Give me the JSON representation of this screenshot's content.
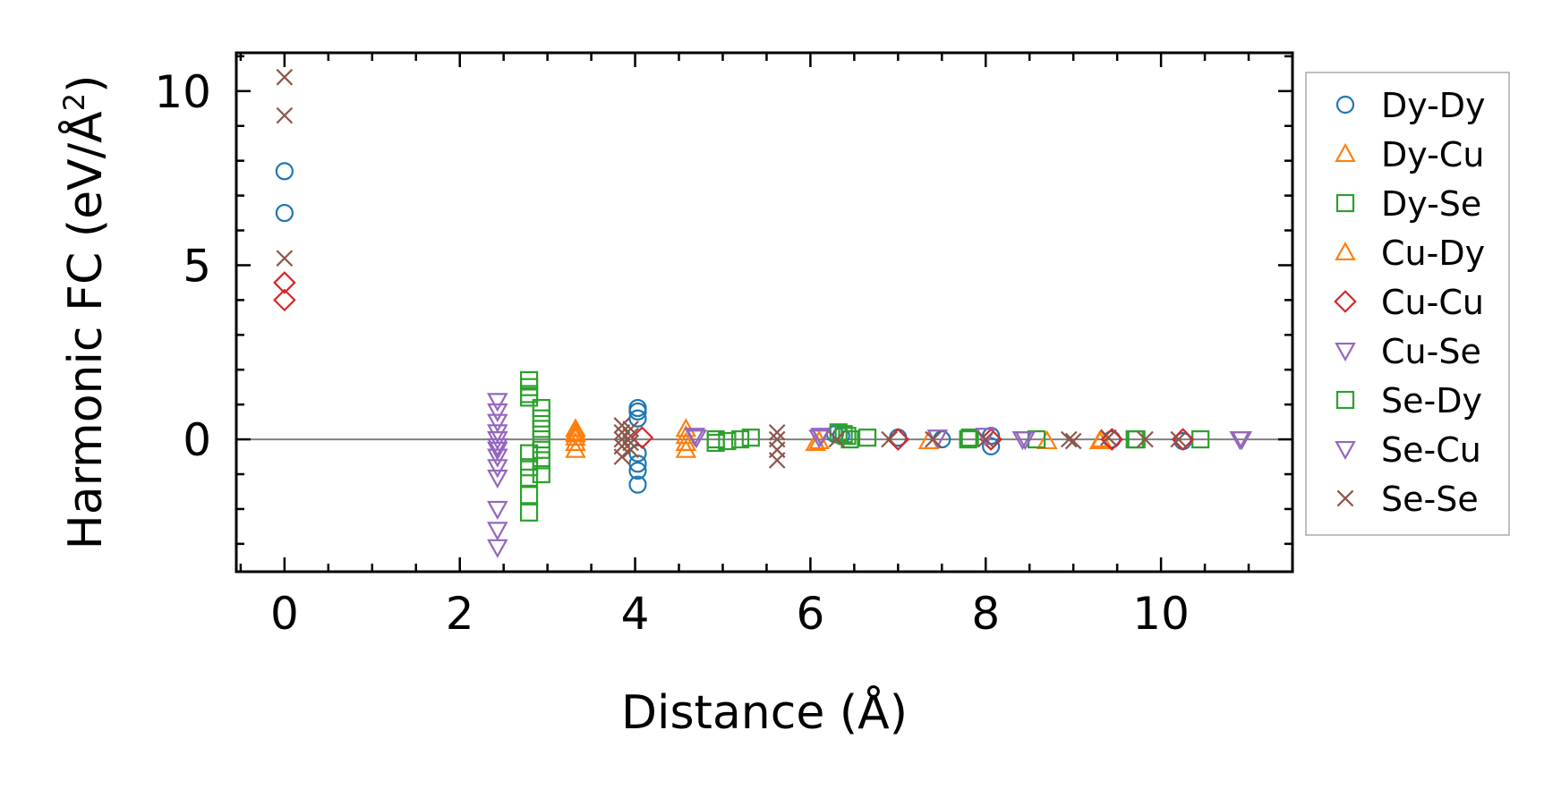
{
  "chart_data": {
    "type": "scatter",
    "title": "",
    "xlabel": "Distance (Å)",
    "ylabel_main": "Harmonic FC (eV/Å",
    "ylabel_sup": "2",
    "ylabel_close": ")",
    "xlim": [
      -0.55,
      11.5
    ],
    "ylim": [
      -3.8,
      11.1
    ],
    "x_ticks": [
      0,
      2,
      4,
      6,
      8,
      10
    ],
    "x_tick_labels": [
      "0",
      "2",
      "4",
      "6",
      "8",
      "10"
    ],
    "y_ticks": [
      0,
      5,
      10
    ],
    "y_tick_labels": [
      "0",
      "5",
      "10"
    ],
    "legend_position": "outside-right",
    "series": [
      {
        "name": "Dy-Dy",
        "marker": "circle",
        "color": "#1f77b4",
        "points": [
          [
            0,
            7.7
          ],
          [
            0,
            6.5
          ],
          [
            4.03,
            0.9
          ],
          [
            4.03,
            0.8
          ],
          [
            4.03,
            0.6
          ],
          [
            4.03,
            -0.4
          ],
          [
            4.03,
            -0.7
          ],
          [
            4.03,
            -0.9
          ],
          [
            4.03,
            -1.3
          ],
          [
            6.28,
            0.15
          ],
          [
            6.35,
            0.1
          ],
          [
            7.0,
            0.05
          ],
          [
            7.5,
            0.0
          ],
          [
            8.06,
            -0.2
          ],
          [
            8.06,
            0.1
          ],
          [
            9.44,
            0.0
          ],
          [
            10.25,
            -0.05
          ]
        ]
      },
      {
        "name": "Dy-Cu",
        "marker": "triangle-up",
        "color": "#ff7f0e",
        "points": [
          [
            3.32,
            0.3
          ],
          [
            3.32,
            0.15
          ],
          [
            3.32,
            -0.1
          ],
          [
            3.32,
            -0.3
          ],
          [
            4.58,
            0.3
          ],
          [
            4.58,
            -0.1
          ],
          [
            4.58,
            -0.3
          ],
          [
            6.06,
            -0.1
          ],
          [
            7.35,
            -0.05
          ],
          [
            8.7,
            -0.05
          ],
          [
            9.3,
            -0.05
          ]
        ]
      },
      {
        "name": "Dy-Se",
        "marker": "square",
        "color": "#2ca02c",
        "points": [
          [
            2.79,
            1.7
          ],
          [
            2.79,
            1.5
          ],
          [
            2.79,
            1.2
          ],
          [
            2.79,
            -0.4
          ],
          [
            2.79,
            -0.8
          ],
          [
            2.79,
            -1.1
          ],
          [
            2.79,
            -1.6
          ],
          [
            2.79,
            -2.1
          ],
          [
            2.93,
            0.9
          ],
          [
            2.93,
            0.6
          ],
          [
            2.93,
            0.3
          ],
          [
            2.93,
            -0.3
          ],
          [
            2.93,
            -0.6
          ],
          [
            2.93,
            -1.0
          ],
          [
            4.92,
            -0.1
          ],
          [
            5.05,
            -0.05
          ],
          [
            5.2,
            0.0
          ],
          [
            5.32,
            0.05
          ],
          [
            6.32,
            0.2
          ],
          [
            6.38,
            0.15
          ],
          [
            6.45,
            0.0
          ],
          [
            6.65,
            0.05
          ],
          [
            7.8,
            0.0
          ],
          [
            8.58,
            0.0
          ],
          [
            9.7,
            0.0
          ],
          [
            10.45,
            0.0
          ]
        ]
      },
      {
        "name": "Cu-Dy",
        "marker": "triangle-up",
        "color": "#ff7f0e",
        "points": [
          [
            3.32,
            0.2
          ],
          [
            3.32,
            0.05
          ],
          [
            4.58,
            0.1
          ],
          [
            6.1,
            -0.05
          ],
          [
            9.32,
            0.0
          ]
        ]
      },
      {
        "name": "Cu-Cu",
        "marker": "diamond",
        "color": "#d62728",
        "points": [
          [
            0,
            4.5
          ],
          [
            0,
            4.0
          ],
          [
            4.08,
            0.05
          ],
          [
            7.0,
            0.0
          ],
          [
            8.06,
            0.0
          ],
          [
            9.44,
            0.0
          ],
          [
            10.25,
            0.0
          ]
        ]
      },
      {
        "name": "Cu-Se",
        "marker": "triangle-down",
        "color": "#9467bd",
        "points": [
          [
            2.43,
            1.1
          ],
          [
            2.43,
            0.8
          ],
          [
            2.43,
            0.5
          ],
          [
            2.43,
            0.2
          ],
          [
            2.43,
            -0.2
          ],
          [
            2.43,
            -0.5
          ],
          [
            2.43,
            -0.8
          ],
          [
            2.43,
            -1.1
          ],
          [
            2.43,
            -2.0
          ],
          [
            2.43,
            -2.6
          ],
          [
            2.43,
            -3.1
          ],
          [
            4.68,
            0.1
          ],
          [
            6.1,
            0.05
          ],
          [
            7.45,
            0.05
          ],
          [
            8.45,
            0.0
          ],
          [
            10.9,
            0.0
          ]
        ]
      },
      {
        "name": "Se-Dy",
        "marker": "square",
        "color": "#2ca02c",
        "points": [
          [
            2.79,
            1.3
          ],
          [
            2.93,
            0.0
          ],
          [
            4.92,
            0.0
          ],
          [
            6.42,
            0.1
          ],
          [
            7.82,
            0.05
          ],
          [
            9.72,
            0.0
          ]
        ]
      },
      {
        "name": "Se-Cu",
        "marker": "triangle-down",
        "color": "#9467bd",
        "points": [
          [
            2.43,
            0.0
          ],
          [
            2.43,
            -0.3
          ],
          [
            4.7,
            0.05
          ],
          [
            6.12,
            0.1
          ],
          [
            8.0,
            0.1
          ],
          [
            8.42,
            0.0
          ],
          [
            10.92,
            0.0
          ]
        ]
      },
      {
        "name": "Se-Se",
        "marker": "x",
        "color": "#8c564b",
        "points": [
          [
            0,
            10.4
          ],
          [
            0,
            9.3
          ],
          [
            0,
            5.2
          ],
          [
            3.85,
            0.4
          ],
          [
            3.85,
            0.2
          ],
          [
            3.85,
            0.0
          ],
          [
            3.85,
            -0.2
          ],
          [
            3.85,
            -0.5
          ],
          [
            3.95,
            0.3
          ],
          [
            3.95,
            0.1
          ],
          [
            3.95,
            -0.1
          ],
          [
            3.95,
            -0.3
          ],
          [
            5.62,
            0.2
          ],
          [
            5.62,
            0.0
          ],
          [
            5.62,
            -0.3
          ],
          [
            5.62,
            -0.6
          ],
          [
            6.3,
            0.0
          ],
          [
            6.9,
            0.0
          ],
          [
            7.4,
            0.0
          ],
          [
            8.0,
            0.0
          ],
          [
            8.95,
            0.0
          ],
          [
            9.0,
            -0.05
          ],
          [
            9.4,
            0.05
          ],
          [
            9.82,
            0.0
          ],
          [
            10.2,
            0.0
          ]
        ]
      }
    ]
  }
}
